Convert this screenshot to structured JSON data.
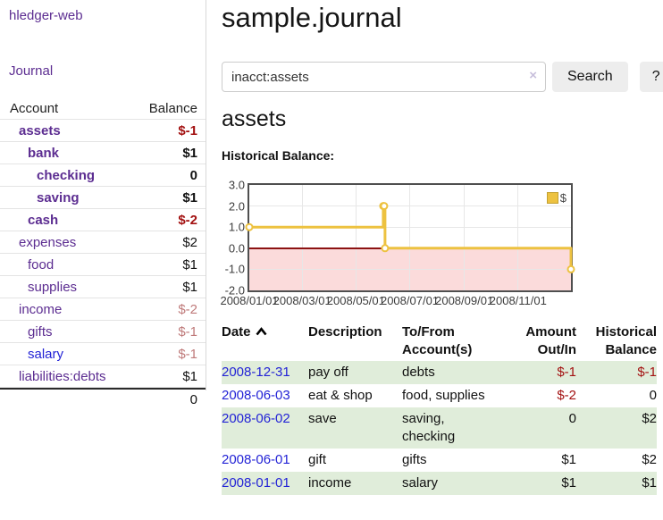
{
  "app": {
    "brand": "hledger-web",
    "nav_journal": "Journal"
  },
  "sidebar": {
    "header": {
      "account": "Account",
      "balance": "Balance"
    },
    "accounts": [
      {
        "label": "assets",
        "amount": "$-1",
        "level": 1,
        "bold": true,
        "amount_style": "negative",
        "link_style": "purple"
      },
      {
        "label": "bank",
        "amount": "$1",
        "level": 2,
        "bold": true,
        "amount_style": "normal",
        "link_style": "purple"
      },
      {
        "label": "checking",
        "amount": "0",
        "level": 3,
        "bold": true,
        "amount_style": "normal",
        "link_style": "purple"
      },
      {
        "label": "saving",
        "amount": "$1",
        "level": 3,
        "bold": true,
        "amount_style": "normal",
        "link_style": "purple"
      },
      {
        "label": "cash",
        "amount": "$-2",
        "level": 2,
        "bold": true,
        "amount_style": "negative",
        "link_style": "purple"
      },
      {
        "label": "expenses",
        "amount": "$2",
        "level": 1,
        "bold": false,
        "amount_style": "normal",
        "link_style": "purple"
      },
      {
        "label": "food",
        "amount": "$1",
        "level": 2,
        "bold": false,
        "amount_style": "normal",
        "link_style": "purple"
      },
      {
        "label": "supplies",
        "amount": "$1",
        "level": 2,
        "bold": false,
        "amount_style": "normal",
        "link_style": "purple"
      },
      {
        "label": "income",
        "amount": "$-2",
        "level": 1,
        "bold": false,
        "amount_style": "rose",
        "link_style": "purple"
      },
      {
        "label": "gifts",
        "amount": "$-1",
        "level": 2,
        "bold": false,
        "amount_style": "rose",
        "link_style": "purple"
      },
      {
        "label": "salary",
        "amount": "$-1",
        "level": 2,
        "bold": false,
        "amount_style": "rose",
        "link_style": "blue"
      },
      {
        "label": "liabilities:debts",
        "amount": "$1",
        "level": 1,
        "bold": false,
        "amount_style": "normal",
        "link_style": "purple"
      }
    ],
    "total": "0"
  },
  "main": {
    "title": "sample.journal",
    "search": {
      "value": "inacct:assets",
      "clear_icon": "×",
      "button": "Search",
      "help_button": "?"
    },
    "account_heading": "assets",
    "chart_label": "Historical Balance:"
  },
  "chart_data": {
    "type": "line",
    "title": "Historical Balance",
    "step": true,
    "series": [
      {
        "name": "$",
        "color": "#edc240",
        "points": [
          {
            "date": "2008-01-01",
            "day": 0,
            "value": 1
          },
          {
            "date": "2008-06-01",
            "day": 152,
            "value": 2
          },
          {
            "date": "2008-06-02",
            "day": 153,
            "value": 2
          },
          {
            "date": "2008-06-03",
            "day": 154,
            "value": 0
          },
          {
            "date": "2008-12-31",
            "day": 365,
            "value": -1
          }
        ]
      }
    ],
    "x_ticks": [
      {
        "day": 0,
        "label": "2008/01/01"
      },
      {
        "day": 60,
        "label": "2008/03/01"
      },
      {
        "day": 121,
        "label": "2008/05/01"
      },
      {
        "day": 182,
        "label": "2008/07/01"
      },
      {
        "day": 244,
        "label": "2008/09/01"
      },
      {
        "day": 305,
        "label": "2008/11/01"
      }
    ],
    "y_ticks": [
      {
        "value": 3,
        "label": "3.0"
      },
      {
        "value": 2,
        "label": "2.0"
      },
      {
        "value": 1,
        "label": "1.0"
      },
      {
        "value": 0,
        "label": "0.0"
      },
      {
        "value": -1,
        "label": "-1.0"
      },
      {
        "value": -2,
        "label": "-2.0"
      }
    ],
    "ylim": [
      -2,
      3
    ],
    "x_range_days": 365,
    "grid": true,
    "negative_region": true,
    "legend": {
      "label": "$",
      "position": "top-right"
    }
  },
  "register": {
    "headers": [
      "Date",
      "Description",
      "To/From Account(s)",
      "Amount Out/In",
      "Historical Balance"
    ],
    "rows": [
      {
        "date": "2008-12-31",
        "description": "pay off",
        "accounts": "debts",
        "amount": "$-1",
        "amount_neg": true,
        "balance": "$-1",
        "balance_neg": true
      },
      {
        "date": "2008-06-03",
        "description": "eat & shop",
        "accounts": "food, supplies",
        "amount": "$-2",
        "amount_neg": true,
        "balance": "0",
        "balance_neg": false
      },
      {
        "date": "2008-06-02",
        "description": "save",
        "accounts": "saving, checking",
        "amount": "0",
        "amount_neg": false,
        "balance": "$2",
        "balance_neg": false
      },
      {
        "date": "2008-06-01",
        "description": "gift",
        "accounts": "gifts",
        "amount": "$1",
        "amount_neg": false,
        "balance": "$2",
        "balance_neg": false
      },
      {
        "date": "2008-01-01",
        "description": "income",
        "accounts": "salary",
        "amount": "$1",
        "amount_neg": false,
        "balance": "$1",
        "balance_neg": false
      }
    ]
  },
  "colors": {
    "purple": "#5c2d91",
    "blue": "#2323d6",
    "negative": "#a31111",
    "rose": "#bf7a7a",
    "rowgreen": "#e0edda",
    "gold": "#edc240",
    "pink": "#fbdbdb",
    "zeroline": "#8c1212",
    "grid": "#e7e7e7",
    "chartborder": "#4f4f4f",
    "btnbg": "#ededed",
    "xicon": "#c7bfdb"
  }
}
